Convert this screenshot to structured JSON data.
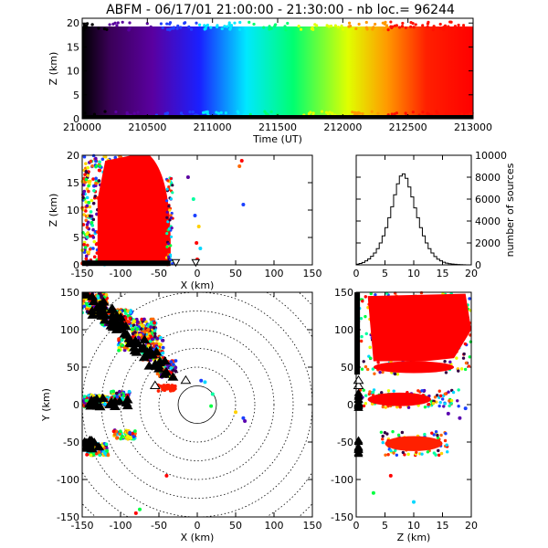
{
  "header": {
    "title": "ABFM - 06/17/01 21:00:00 - 21:30:00 - nb loc.= 96244"
  },
  "chart_data": [
    {
      "id": "timeseries",
      "type": "scatter",
      "xlabel": "Time (UT)",
      "ylabel": "Z (km)",
      "xlim": [
        210000,
        213000
      ],
      "ylim": [
        0,
        21
      ],
      "xticks": [
        "210000",
        "210500",
        "211000",
        "211500",
        "212000",
        "212500",
        "213000"
      ],
      "yticks": [
        "0",
        "5",
        "10",
        "15",
        "20"
      ],
      "color_scale": "time coloured violet to red",
      "points_note": "dense band of sources from 0 to 20 km over entire period"
    },
    {
      "id": "xz",
      "type": "scatter",
      "xlabel": "X (km)",
      "ylabel": "Z (km)",
      "xlim": [
        -150,
        150
      ],
      "ylim": [
        0,
        20
      ],
      "xticks": [
        "-150",
        "-100",
        "-50",
        "0",
        "50",
        "100",
        "150"
      ],
      "yticks": [
        "0",
        "5",
        "10",
        "15",
        "20"
      ]
    },
    {
      "id": "histogram",
      "type": "line",
      "xlabel": "",
      "ylabel": "number of sources",
      "xlim": [
        0,
        20
      ],
      "ylim": [
        0,
        10000
      ],
      "xticks": [
        "0",
        "5",
        "10",
        "15",
        "20"
      ],
      "yticks": [
        "0",
        "2000",
        "4000",
        "6000",
        "8000",
        "10000"
      ],
      "bin_width_km": 0.5,
      "x": [
        0,
        0.5,
        1,
        1.5,
        2,
        2.5,
        3,
        3.5,
        4,
        4.5,
        5,
        5.5,
        6,
        6.5,
        7,
        7.5,
        8,
        8.5,
        9,
        9.5,
        10,
        10.5,
        11,
        11.5,
        12,
        12.5,
        13,
        13.5,
        14,
        14.5,
        15,
        15.5,
        16,
        16.5,
        17,
        17.5,
        18,
        18.5,
        19,
        19.5
      ],
      "values": [
        60,
        120,
        220,
        360,
        540,
        780,
        1080,
        1480,
        2000,
        2650,
        3400,
        4300,
        5300,
        6400,
        7400,
        8100,
        8300,
        7900,
        7100,
        6200,
        5200,
        4300,
        3400,
        2650,
        2000,
        1480,
        1080,
        760,
        520,
        360,
        240,
        160,
        100,
        70,
        50,
        30,
        20,
        10,
        5,
        0
      ]
    },
    {
      "id": "plan",
      "type": "scatter",
      "xlabel": "X (km)",
      "ylabel": "Y (km)",
      "xlim": [
        -150,
        150
      ],
      "ylim": [
        -150,
        150
      ],
      "xticks": [
        "-150",
        "-100",
        "-50",
        "0",
        "50",
        "100",
        "150"
      ],
      "yticks": [
        "-150",
        "-100",
        "-50",
        "0",
        "50",
        "100",
        "150"
      ],
      "range_rings_km": [
        25,
        50,
        75,
        100,
        125,
        150,
        175,
        200
      ]
    },
    {
      "id": "zy",
      "type": "scatter",
      "xlabel": "Z (km)",
      "ylabel": "",
      "xlim": [
        0,
        20
      ],
      "ylim": [
        -150,
        150
      ],
      "xticks": [
        "0",
        "5",
        "10",
        "15",
        "20"
      ],
      "yticks": [
        "-150",
        "-100",
        "-50",
        "0",
        "50",
        "100",
        "150"
      ]
    }
  ]
}
